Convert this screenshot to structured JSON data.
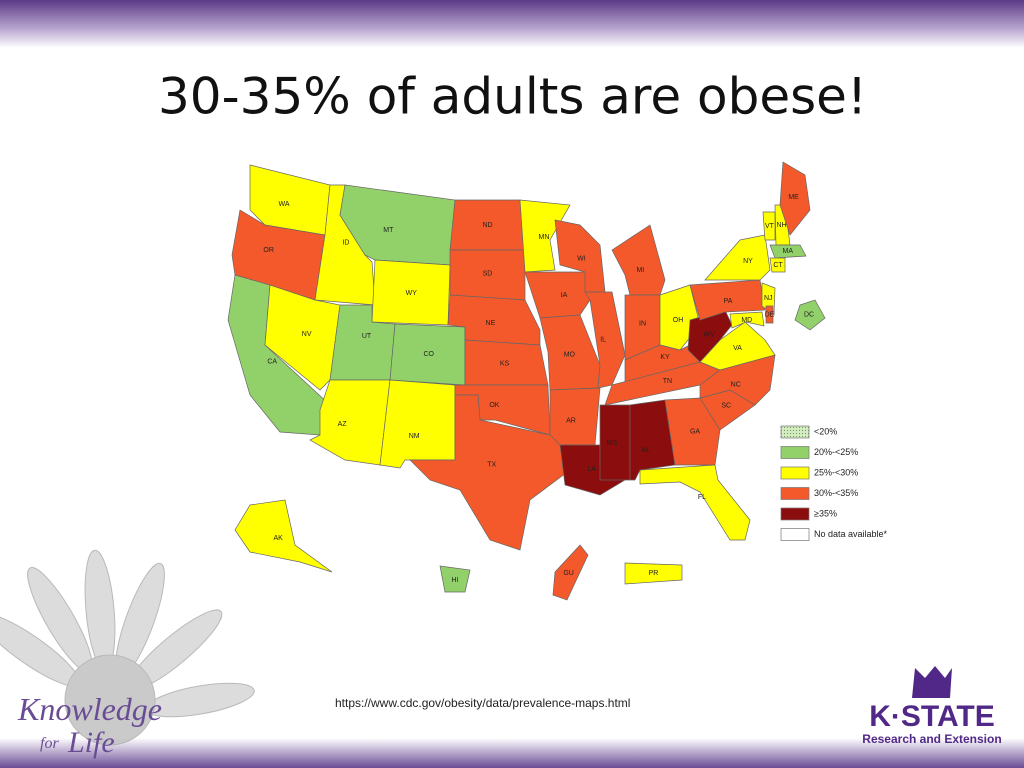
{
  "header": {
    "title": "30-35% of adults are obese!"
  },
  "map": {
    "states": [
      {
        "label": "WA",
        "bin": 2
      },
      {
        "label": "OR",
        "bin": 3
      },
      {
        "label": "CA",
        "bin": 1
      },
      {
        "label": "ID",
        "bin": 2
      },
      {
        "label": "NV",
        "bin": 2
      },
      {
        "label": "MT",
        "bin": 1
      },
      {
        "label": "WY",
        "bin": 2
      },
      {
        "label": "UT",
        "bin": 1
      },
      {
        "label": "CO",
        "bin": 1
      },
      {
        "label": "AZ",
        "bin": 2
      },
      {
        "label": "NM",
        "bin": 2
      },
      {
        "label": "ND",
        "bin": 3
      },
      {
        "label": "SD",
        "bin": 3
      },
      {
        "label": "NE",
        "bin": 3
      },
      {
        "label": "KS",
        "bin": 3
      },
      {
        "label": "OK",
        "bin": 3
      },
      {
        "label": "TX",
        "bin": 3
      },
      {
        "label": "MN",
        "bin": 2
      },
      {
        "label": "IA",
        "bin": 3
      },
      {
        "label": "MO",
        "bin": 3
      },
      {
        "label": "AR",
        "bin": 3
      },
      {
        "label": "LA",
        "bin": 4
      },
      {
        "label": "WI",
        "bin": 3
      },
      {
        "label": "IL",
        "bin": 3
      },
      {
        "label": "MI",
        "bin": 3
      },
      {
        "label": "IN",
        "bin": 3
      },
      {
        "label": "OH",
        "bin": 2
      },
      {
        "label": "KY",
        "bin": 3
      },
      {
        "label": "TN",
        "bin": 3
      },
      {
        "label": "MS",
        "bin": 4
      },
      {
        "label": "AL",
        "bin": 4
      },
      {
        "label": "GA",
        "bin": 3
      },
      {
        "label": "FL",
        "bin": 2
      },
      {
        "label": "SC",
        "bin": 3
      },
      {
        "label": "NC",
        "bin": 3
      },
      {
        "label": "VA",
        "bin": 2
      },
      {
        "label": "WV",
        "bin": 4
      },
      {
        "label": "PA",
        "bin": 3
      },
      {
        "label": "NY",
        "bin": 2
      },
      {
        "label": "VT",
        "bin": 2
      },
      {
        "label": "NH",
        "bin": 2
      },
      {
        "label": "ME",
        "bin": 3
      },
      {
        "label": "MA",
        "bin": 1
      },
      {
        "label": "CT",
        "bin": 2
      },
      {
        "label": "NJ",
        "bin": 2
      },
      {
        "label": "MD",
        "bin": 2
      },
      {
        "label": "DE",
        "bin": 3
      },
      {
        "label": "DC",
        "bin": 1
      },
      {
        "label": "AK",
        "bin": 2
      },
      {
        "label": "HI",
        "bin": 1
      },
      {
        "label": "GU",
        "bin": 3
      },
      {
        "label": "PR",
        "bin": 2
      }
    ],
    "legend": [
      {
        "label": "<20%",
        "color": "#d6ecc4"
      },
      {
        "label": "20%-<25%",
        "color": "#92d16a"
      },
      {
        "label": "25%-<30%",
        "color": "#ffff00"
      },
      {
        "label": "30%-<35%",
        "color": "#f4592b"
      },
      {
        "label": "≥35%",
        "color": "#8b0d0d"
      },
      {
        "label": "No data available*",
        "color": "#ffffff"
      }
    ]
  },
  "footer": {
    "source": "https://www.cdc.gov/obesity/data/prevalence-maps.html",
    "left_logo": {
      "line1": "Knowledge",
      "for": "for",
      "line2": "Life"
    },
    "right_logo": {
      "name": "K·STATE",
      "tagline": "Research and Extension"
    }
  }
}
